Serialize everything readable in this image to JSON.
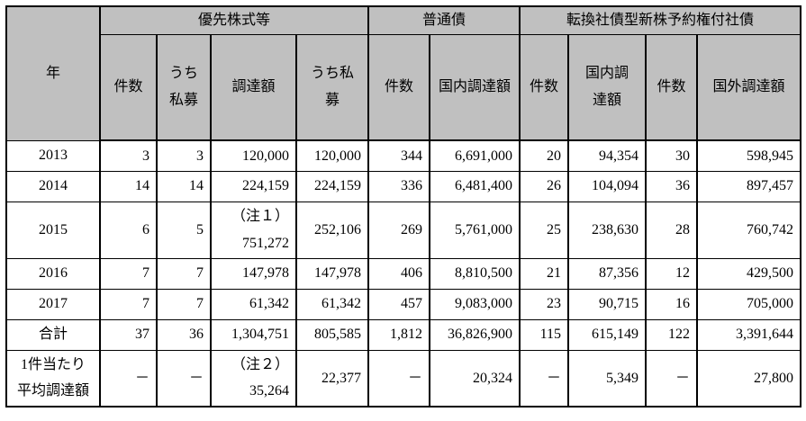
{
  "table": {
    "header": {
      "year_label": "年",
      "groups": [
        {
          "label": "優先株式等",
          "columns": [
            "件数",
            "うち\n私募",
            "調達額",
            "うち私\n募"
          ]
        },
        {
          "label": "普通債",
          "columns": [
            "件数",
            "国内調達額"
          ]
        },
        {
          "label": "転換社債型新株予約権付社債",
          "columns": [
            "件数",
            "国内調\n達額",
            "件数",
            "国外調達額"
          ]
        }
      ]
    },
    "rows": [
      {
        "year": "2013",
        "values": [
          "3",
          "3",
          "120,000",
          "120,000",
          "344",
          "6,691,000",
          "20",
          "94,354",
          "30",
          "598,945"
        ],
        "tall": false
      },
      {
        "year": "2014",
        "values": [
          "14",
          "14",
          "224,159",
          "224,159",
          "336",
          "6,481,400",
          "26",
          "104,094",
          "36",
          "897,457"
        ],
        "tall": false
      },
      {
        "year": "2015",
        "values": [
          "6",
          "5",
          "（注１）\n751,272",
          "252,106",
          "269",
          "5,761,000",
          "25",
          "238,630",
          "28",
          "760,742"
        ],
        "tall": true
      },
      {
        "year": "2016",
        "values": [
          "7",
          "7",
          "147,978",
          "147,978",
          "406",
          "8,810,500",
          "21",
          "87,356",
          "12",
          "429,500"
        ],
        "tall": false
      },
      {
        "year": "2017",
        "values": [
          "7",
          "7",
          "61,342",
          "61,342",
          "457",
          "9,083,000",
          "23",
          "90,715",
          "16",
          "705,000"
        ],
        "tall": false
      },
      {
        "year": "合計",
        "values": [
          "37",
          "36",
          "1,304,751",
          "805,585",
          "1,812",
          "36,826,900",
          "115",
          "615,149",
          "122",
          "3,391,644"
        ],
        "tall": false
      },
      {
        "year": "1件当たり\n平均調達額",
        "values": [
          "－",
          "－",
          "（注２）\n35,264",
          "22,377",
          "－",
          "20,324",
          "－",
          "5,349",
          "－",
          "27,800"
        ],
        "tall": true
      }
    ],
    "colors": {
      "header_bg": "#c0c0c0",
      "border": "#000000",
      "background": "#ffffff"
    }
  }
}
